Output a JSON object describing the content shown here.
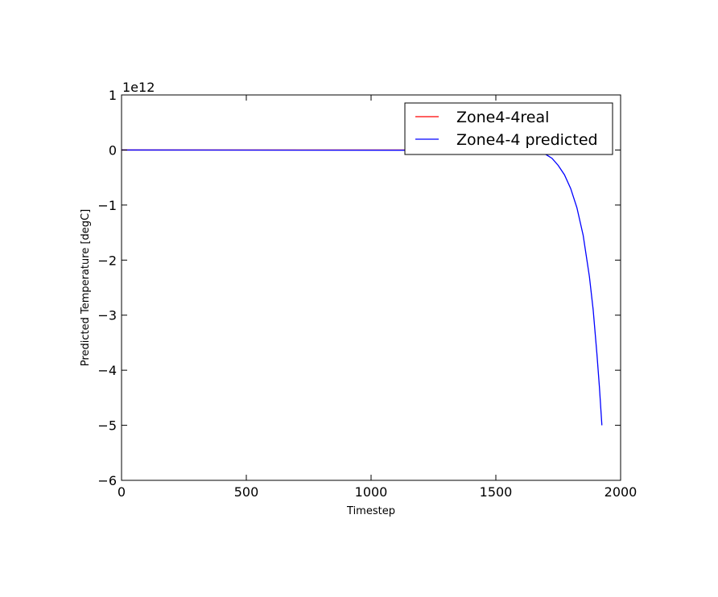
{
  "chart_data": {
    "type": "line",
    "title": "",
    "xlabel": "Timestep",
    "ylabel": "Predicted Temperature [degC]",
    "y_offset_label": "1e12",
    "xlim": [
      0,
      2000
    ],
    "ylim": [
      -6,
      1
    ],
    "x_ticks": [
      0,
      500,
      1000,
      1500,
      2000
    ],
    "x_tick_labels": [
      "0",
      "500",
      "1000",
      "1500",
      "2000"
    ],
    "y_ticks": [
      1,
      0,
      -1,
      -2,
      -3,
      -4,
      -5,
      -6
    ],
    "y_tick_labels": [
      "1",
      "0",
      "−1",
      "−2",
      "−3",
      "−4",
      "−5",
      "−6"
    ],
    "grid": false,
    "legend_position": "top-right",
    "series": [
      {
        "name": "Zone4-4real",
        "color": "#ff0000",
        "x": [
          0,
          1925
        ],
        "y": [
          0,
          0
        ]
      },
      {
        "name": "Zone4-4 predicted",
        "color": "#0000ff",
        "x": [
          0,
          1600,
          1650,
          1700,
          1725,
          1750,
          1775,
          1800,
          1825,
          1850,
          1875,
          1890,
          1905,
          1915,
          1925
        ],
        "y": [
          0,
          -0.005,
          -0.02,
          -0.08,
          -0.15,
          -0.28,
          -0.45,
          -0.7,
          -1.05,
          -1.55,
          -2.3,
          -2.9,
          -3.7,
          -4.3,
          -5.0
        ]
      }
    ]
  }
}
